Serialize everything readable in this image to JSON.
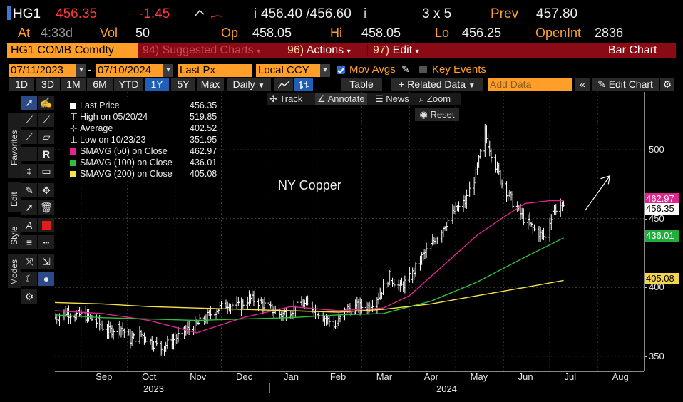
{
  "quote": {
    "ticker": "HG1",
    "last": "456.35",
    "change": "-1.45",
    "bid_ask": "456.40 /456.60",
    "bid_prefix": "i",
    "ask_suffix": "i",
    "size": "3 x 5",
    "prev_label": "Prev",
    "prev": "457.80",
    "at_label": "At",
    "at_time": "4:33d",
    "vol_label": "Vol",
    "vol": "50",
    "op_label": "Op",
    "op": "458.05",
    "hi_label": "Hi",
    "hi": "458.05",
    "lo_label": "Lo",
    "lo": "456.25",
    "oi_label": "OpenInt",
    "oi": "2836"
  },
  "titlebar": {
    "security": "HG1 COMB Comdty",
    "menu": [
      {
        "num": "94)",
        "label": "Suggested Charts"
      },
      {
        "num": "96)",
        "label": "Actions"
      },
      {
        "num": "97)",
        "label": "Edit"
      }
    ],
    "chart_type": "Bar Chart"
  },
  "controls": {
    "start_date": "07/11/2023",
    "end_date": "07/10/2024",
    "price_field": "Last Px",
    "currency": "Local CCY",
    "mov_avgs_label": "Mov Avgs",
    "key_events_label": "Key Events"
  },
  "toolbar": {
    "ranges": [
      "1D",
      "3D",
      "1M",
      "6M",
      "YTD",
      "1Y",
      "5Y",
      "Max"
    ],
    "selected_range": "1Y",
    "frequency": "Daily",
    "table_label": "Table",
    "related_label": "+ Related Data",
    "add_data_placeholder": "Add Data",
    "edit_chart_label": "Edit Chart"
  },
  "sidebar": {
    "tabs": [
      "Favorites",
      "Edit",
      "Style",
      "Modes"
    ]
  },
  "chart_tools": {
    "track_label": "Track",
    "annotate_label": "Annotate",
    "news_label": "News",
    "zoom_label": "Zoom",
    "reset_label": "Reset"
  },
  "legend": {
    "items": [
      {
        "label": "Last Price",
        "value": "456.35",
        "color": "#ffffff"
      },
      {
        "label": "High on 05/20/24",
        "value": "519.85",
        "color": ""
      },
      {
        "label": "Average",
        "value": "402.52",
        "color": ""
      },
      {
        "label": "Low on 10/23/23",
        "value": "351.95",
        "color": ""
      },
      {
        "label": "SMAVG (50)  on Close",
        "value": "462.97",
        "color": "#e0258f"
      },
      {
        "label": "SMAVG (100)  on Close",
        "value": "436.01",
        "color": "#2fbf3f"
      },
      {
        "label": "SMAVG (200)  on Close",
        "value": "405.08",
        "color": "#f5e34a"
      }
    ]
  },
  "price_tags": [
    {
      "value": "462.97",
      "color": "#e0258f",
      "text_color": "#ffffff"
    },
    {
      "value": "456.35",
      "color": "#ffffff",
      "text_color": "#000000"
    },
    {
      "value": "436.01",
      "color": "#1fae3a",
      "text_color": "#ffffff"
    },
    {
      "value": "405.08",
      "color": "#f5d54a",
      "text_color": "#000000"
    }
  ],
  "chart_data": {
    "type": "bar",
    "title": "NY Copper",
    "annotation": "NY Copper",
    "y_ticks": [
      350,
      400,
      450,
      500
    ],
    "ylim": [
      339,
      542
    ],
    "x_months": [
      "Sep",
      "Oct",
      "Nov",
      "Dec",
      "Jan",
      "Feb",
      "Mar",
      "Apr",
      "May",
      "Jun",
      "Jul",
      "Aug"
    ],
    "x_years": [
      "2023",
      "2024"
    ],
    "x_start": "2023-08-15",
    "x_end": "2024-08-31",
    "close_series": [
      [
        "2023-08-15",
        378
      ],
      [
        "2023-08-22",
        382
      ],
      [
        "2023-08-29",
        380
      ],
      [
        "2023-09-05",
        379
      ],
      [
        "2023-09-12",
        374
      ],
      [
        "2023-09-19",
        368
      ],
      [
        "2023-09-26",
        372
      ],
      [
        "2023-10-03",
        362
      ],
      [
        "2023-10-10",
        366
      ],
      [
        "2023-10-17",
        360
      ],
      [
        "2023-10-23",
        356
      ],
      [
        "2023-10-31",
        362
      ],
      [
        "2023-11-07",
        368
      ],
      [
        "2023-11-14",
        372
      ],
      [
        "2023-11-21",
        378
      ],
      [
        "2023-11-28",
        384
      ],
      [
        "2023-12-05",
        388
      ],
      [
        "2023-12-12",
        386
      ],
      [
        "2023-12-19",
        392
      ],
      [
        "2023-12-26",
        389
      ],
      [
        "2024-01-02",
        384
      ],
      [
        "2024-01-09",
        380
      ],
      [
        "2024-01-16",
        384
      ],
      [
        "2024-01-23",
        388
      ],
      [
        "2024-01-30",
        385
      ],
      [
        "2024-02-06",
        378
      ],
      [
        "2024-02-13",
        372
      ],
      [
        "2024-02-20",
        384
      ],
      [
        "2024-02-27",
        386
      ],
      [
        "2024-03-05",
        386
      ],
      [
        "2024-03-12",
        394
      ],
      [
        "2024-03-19",
        408
      ],
      [
        "2024-03-26",
        400
      ],
      [
        "2024-04-02",
        408
      ],
      [
        "2024-04-09",
        422
      ],
      [
        "2024-04-16",
        432
      ],
      [
        "2024-04-23",
        444
      ],
      [
        "2024-04-30",
        455
      ],
      [
        "2024-05-07",
        462
      ],
      [
        "2024-05-14",
        482
      ],
      [
        "2024-05-20",
        512
      ],
      [
        "2024-05-24",
        498
      ],
      [
        "2024-05-31",
        476
      ],
      [
        "2024-06-07",
        462
      ],
      [
        "2024-06-14",
        450
      ],
      [
        "2024-06-21",
        442
      ],
      [
        "2024-06-28",
        436
      ],
      [
        "2024-07-03",
        456
      ],
      [
        "2024-07-08",
        460
      ],
      [
        "2024-07-10",
        456.35
      ]
    ],
    "series": [
      {
        "name": "SMAVG (50) on Close",
        "last": 462.97,
        "values": [
          [
            "2023-08-15",
            383
          ],
          [
            "2023-09-15",
            381
          ],
          [
            "2023-10-15",
            376
          ],
          [
            "2023-11-15",
            367
          ],
          [
            "2023-12-15",
            378
          ],
          [
            "2024-01-15",
            386
          ],
          [
            "2024-02-15",
            383
          ],
          [
            "2024-03-15",
            385
          ],
          [
            "2024-04-01",
            394
          ],
          [
            "2024-04-15",
            408
          ],
          [
            "2024-05-01",
            424
          ],
          [
            "2024-05-15",
            438
          ],
          [
            "2024-06-01",
            451
          ],
          [
            "2024-06-15",
            461
          ],
          [
            "2024-07-01",
            463
          ],
          [
            "2024-07-10",
            462.97
          ]
        ]
      },
      {
        "name": "SMAVG (100) on Close",
        "last": 436.01,
        "values": [
          [
            "2023-08-15",
            380
          ],
          [
            "2023-09-15",
            378
          ],
          [
            "2023-10-15",
            377
          ],
          [
            "2023-11-15",
            376
          ],
          [
            "2023-12-15",
            377
          ],
          [
            "2024-01-15",
            378
          ],
          [
            "2024-02-15",
            380
          ],
          [
            "2024-03-15",
            381
          ],
          [
            "2024-04-15",
            390
          ],
          [
            "2024-05-15",
            404
          ],
          [
            "2024-06-15",
            422
          ],
          [
            "2024-07-10",
            436.01
          ]
        ]
      },
      {
        "name": "SMAVG (200) on Close",
        "last": 405.08,
        "values": [
          [
            "2023-08-15",
            389
          ],
          [
            "2023-09-15",
            388
          ],
          [
            "2023-10-15",
            386
          ],
          [
            "2023-11-15",
            385
          ],
          [
            "2023-12-15",
            384
          ],
          [
            "2024-01-15",
            383
          ],
          [
            "2024-02-15",
            382
          ],
          [
            "2024-03-15",
            384
          ],
          [
            "2024-04-15",
            388
          ],
          [
            "2024-05-15",
            394
          ],
          [
            "2024-06-15",
            400
          ],
          [
            "2024-07-10",
            405.08
          ]
        ]
      }
    ],
    "line_colors": [
      "#e0258f",
      "#2fbf3f",
      "#f5e34a"
    ],
    "legend_position": "top-left",
    "grid": true
  }
}
